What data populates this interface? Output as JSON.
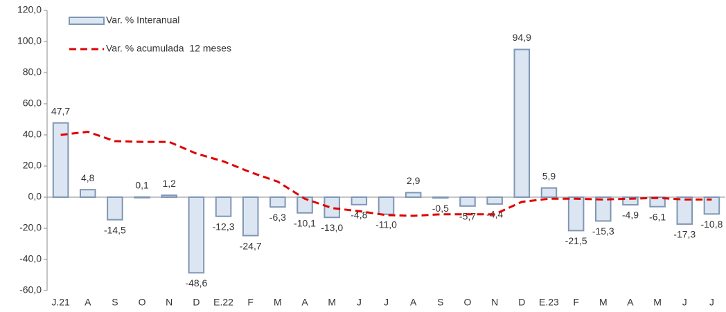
{
  "chart_data": {
    "type": "bar",
    "categories": [
      "J.21",
      "A",
      "S",
      "O",
      "N",
      "D",
      "E.22",
      "F",
      "M",
      "A",
      "M",
      "J",
      "J",
      "A",
      "S",
      "O",
      "N",
      "D",
      "E.23",
      "F",
      "M",
      "A",
      "M",
      "J",
      "J"
    ],
    "series": [
      {
        "name": "Var. % Interanual",
        "type": "bar",
        "color": "#dce6f2",
        "values": [
          47.7,
          4.8,
          -14.5,
          0.1,
          1.2,
          -48.6,
          -12.3,
          -24.7,
          -6.3,
          -10.1,
          -13.0,
          -4.8,
          -11.0,
          2.9,
          -0.5,
          -5.7,
          -4.4,
          94.9,
          5.9,
          -21.5,
          -15.3,
          -4.9,
          -6.1,
          -17.3,
          -10.8
        ],
        "value_labels": [
          "47,7",
          "4,8",
          "-14,5",
          "0,1",
          "1,2",
          "-48,6",
          "-12,3",
          "-24,7",
          "-6,3",
          "-10,1",
          "-13,0",
          "-4,8",
          "-11,0",
          "2,9",
          "-0,5",
          "-5,7",
          "-4,4",
          "94,9",
          "5,9",
          "-21,5",
          "-15,3",
          "-4,9",
          "-6,1",
          "-17,3",
          "-10,8"
        ]
      },
      {
        "name": "Var. % acumulada  12 meses",
        "type": "line",
        "color": "#e00000",
        "line_style": "dashed",
        "values": [
          40,
          42,
          36,
          35.5,
          35.5,
          28,
          23,
          16,
          10,
          -1,
          -7,
          -9,
          -11.5,
          -12,
          -11,
          -11,
          -11,
          -3,
          -1,
          -1,
          -1.5,
          -1,
          -0.5,
          -1.5,
          -1.5
        ]
      }
    ],
    "ylim": [
      -60,
      120
    ],
    "yticks": [
      {
        "value": -60,
        "label": "-60,0"
      },
      {
        "value": -40,
        "label": "-40,0"
      },
      {
        "value": -20,
        "label": "-20,0"
      },
      {
        "value": 0,
        "label": "0,0"
      },
      {
        "value": 20,
        "label": "20,0"
      },
      {
        "value": 40,
        "label": "40,0"
      },
      {
        "value": 60,
        "label": "60,0"
      },
      {
        "value": 80,
        "label": "80,0"
      },
      {
        "value": 100,
        "label": "100,0"
      },
      {
        "value": 120,
        "label": "120,0"
      }
    ],
    "legend": "top-left"
  }
}
